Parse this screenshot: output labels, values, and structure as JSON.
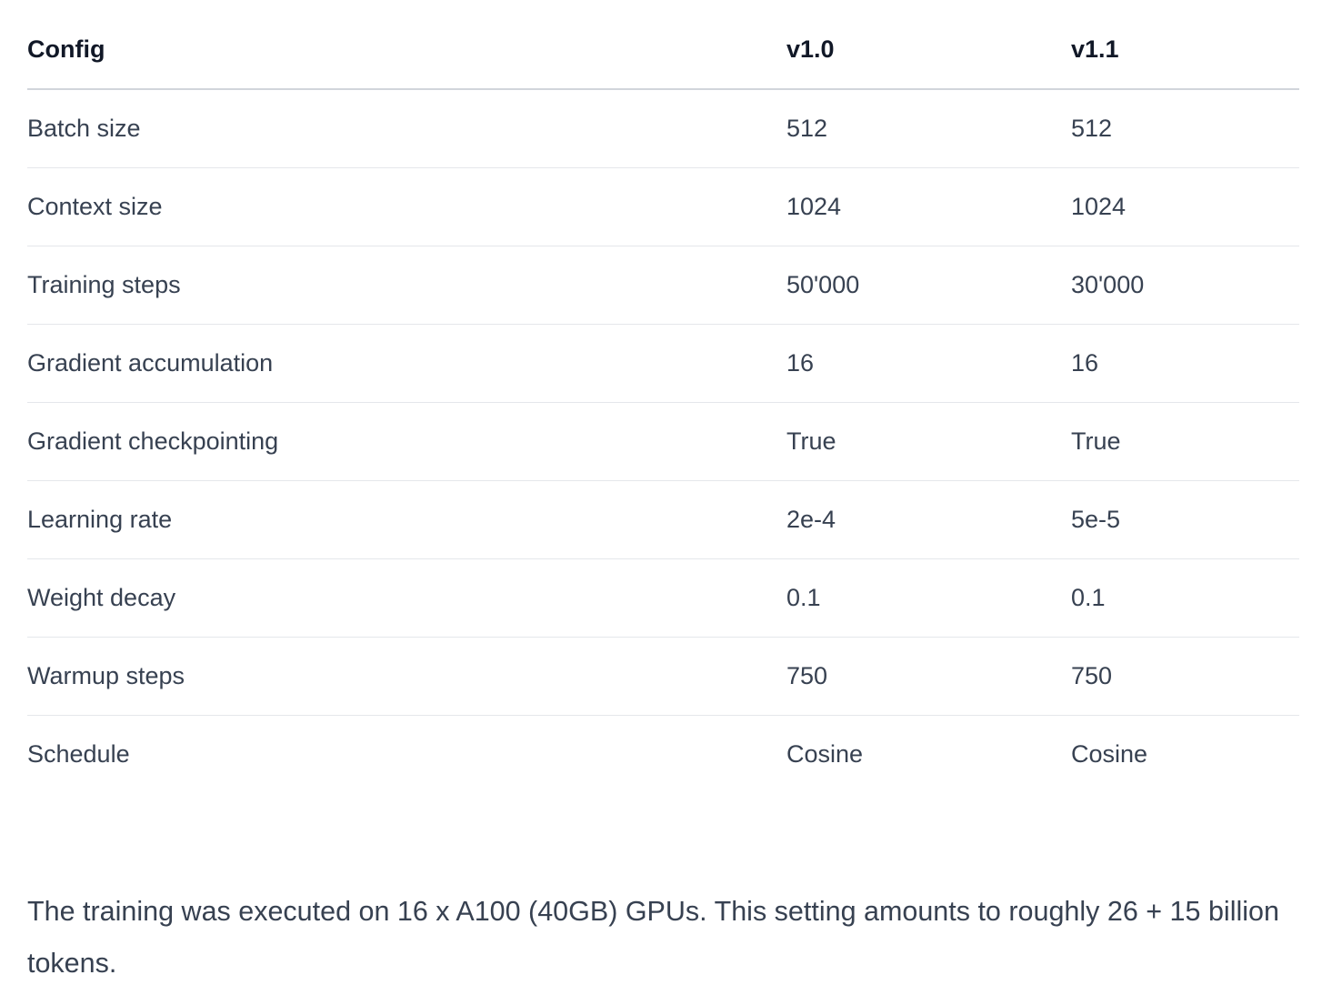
{
  "table": {
    "headers": [
      "Config",
      "v1.0",
      "v1.1"
    ],
    "rows": [
      [
        "Batch size",
        "512",
        "512"
      ],
      [
        "Context size",
        "1024",
        "1024"
      ],
      [
        "Training steps",
        "50'000",
        "30'000"
      ],
      [
        "Gradient accumulation",
        "16",
        "16"
      ],
      [
        "Gradient checkpointing",
        "True",
        "True"
      ],
      [
        "Learning rate",
        "2e-4",
        "5e-5"
      ],
      [
        "Weight decay",
        "0.1",
        "0.1"
      ],
      [
        "Warmup steps",
        "750",
        "750"
      ],
      [
        "Schedule",
        "Cosine",
        "Cosine"
      ]
    ]
  },
  "footnote": "The training was executed on 16 x A100 (40GB) GPUs. This setting amounts to roughly 26 + 15 billion tokens."
}
